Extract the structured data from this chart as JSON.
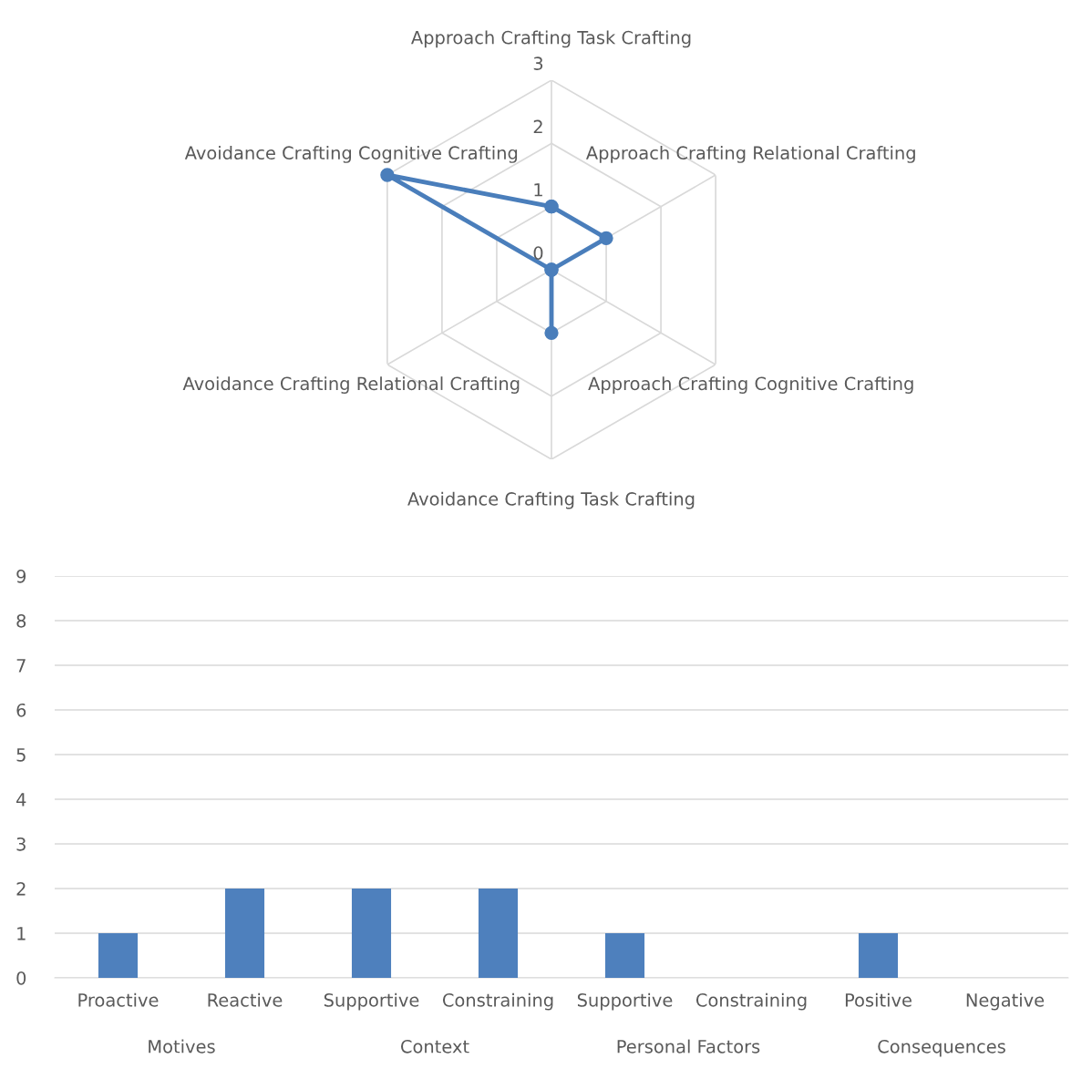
{
  "chart_data": [
    {
      "type": "radar",
      "categories": [
        "Approach Crafting Task Crafting",
        "Approach Crafting Relational Crafting",
        "Approach Crafting Cognitive Crafting",
        "Avoidance Crafting Task Crafting",
        "Avoidance Crafting Relational Crafting",
        "Avoidance Crafting Cognitive Crafting"
      ],
      "series": [
        {
          "color": "#4a7ebb",
          "values": [
            1,
            1,
            0,
            1,
            0,
            3
          ]
        }
      ],
      "ylim": [
        0,
        3
      ],
      "yticks": [
        0,
        1,
        2,
        3
      ],
      "grid": true,
      "marker": "circle",
      "line_style": "solid",
      "legend": false
    },
    {
      "type": "bar",
      "categories": [
        "Proactive",
        "Reactive",
        "Supportive",
        "Constraining",
        "Supportive",
        "Constraining",
        "Positive",
        "Negative"
      ],
      "series": [
        {
          "color": "#4e80bd",
          "values": [
            1,
            2,
            2,
            2,
            1,
            0,
            1,
            0
          ]
        }
      ],
      "annotations": [
        "Motives",
        "Context",
        "Personal Factors",
        "Consequences"
      ],
      "ylim": [
        0,
        9
      ],
      "yticks": [
        0,
        1,
        2,
        3,
        4,
        5,
        6,
        7,
        8,
        9
      ],
      "grid": "y",
      "legend": false
    }
  ]
}
